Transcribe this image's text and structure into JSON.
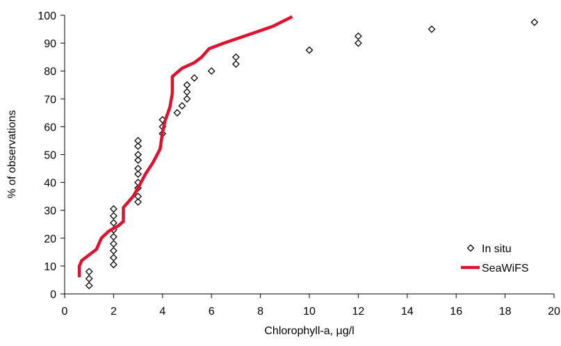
{
  "chart_data": {
    "type": "scatter",
    "x_label": "Chlorophyll-a, µg/l",
    "y_label": "% of  observations",
    "xlim": [
      0,
      20
    ],
    "xticks": [
      0,
      2,
      4,
      6,
      8,
      10,
      12,
      14,
      16,
      18,
      20
    ],
    "ylim": [
      0,
      100
    ],
    "yticks": [
      0,
      10,
      20,
      30,
      40,
      50,
      60,
      70,
      80,
      90,
      100
    ],
    "grid": false,
    "legend": "lower right",
    "series": [
      {
        "name": "In situ",
        "type": "scatter",
        "color": "#000000",
        "x": [
          1,
          1,
          1,
          2,
          2,
          2,
          2,
          2,
          2,
          2,
          2,
          2,
          3,
          3,
          3,
          3,
          3,
          3,
          3,
          3,
          3,
          3,
          4,
          4,
          4,
          4.6,
          4.8,
          5,
          5,
          5,
          5.3,
          6,
          7,
          7,
          10,
          12,
          12,
          15,
          19.2
        ],
        "values": [
          3,
          5.5,
          8,
          10.5,
          13,
          15.5,
          18,
          20.5,
          23,
          25.5,
          28,
          30.5,
          33,
          35,
          38,
          40,
          43,
          45,
          48,
          50,
          53,
          55,
          57.5,
          60,
          62.5,
          65,
          67.5,
          70,
          72.5,
          75,
          77.5,
          80,
          82.5,
          85,
          87.5,
          90,
          92.5,
          95,
          97.5
        ]
      },
      {
        "name": "SeaWiFS",
        "type": "line",
        "color": "#e0102f",
        "x": [
          0.6,
          0.6,
          0.7,
          1.0,
          1.3,
          1.5,
          1.8,
          2.2,
          2.4,
          2.4,
          2.8,
          3.0,
          3.3,
          3.6,
          3.9,
          4.0,
          4.1,
          4.3,
          4.4,
          4.4,
          4.8,
          5.3,
          5.6,
          5.9,
          6.5,
          7.5,
          8.5,
          9.3
        ],
        "values": [
          6,
          10,
          12,
          14,
          16,
          20,
          22.5,
          24.5,
          26,
          31,
          35,
          38,
          43,
          47,
          52,
          58,
          62,
          67,
          72,
          78,
          81,
          83,
          85,
          88,
          90,
          93,
          96,
          99.5
        ]
      }
    ]
  }
}
